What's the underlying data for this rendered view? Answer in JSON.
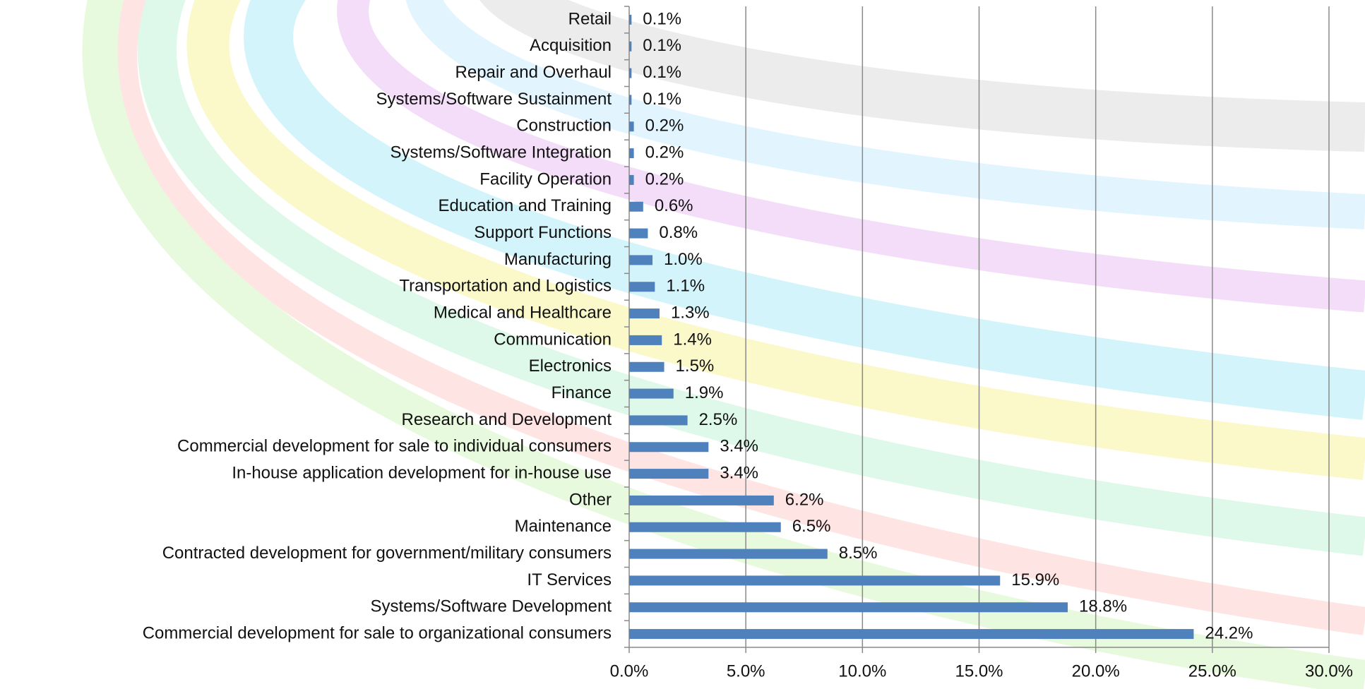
{
  "chart_data": {
    "type": "bar",
    "categories": [
      "Retail",
      "Acquisition",
      "Repair and Overhaul",
      "Systems/Software Sustainment",
      "Construction",
      "Systems/Software Integration",
      "Facility Operation",
      "Education and Training",
      "Support Functions",
      "Manufacturing",
      "Transportation and Logistics",
      "Medical and Healthcare",
      "Communication",
      "Electronics",
      "Finance",
      "Research and Development",
      "Commercial development for sale to individual consumers",
      "In-house application development for in-house use",
      "Other",
      "Maintenance",
      "Contracted development for government/military consumers",
      "IT Services",
      "Systems/Software Development",
      "Commercial development for sale to organizational consumers"
    ],
    "values": [
      0.1,
      0.1,
      0.1,
      0.1,
      0.2,
      0.2,
      0.2,
      0.6,
      0.8,
      1.0,
      1.1,
      1.3,
      1.4,
      1.5,
      1.9,
      2.5,
      3.4,
      3.4,
      6.2,
      6.5,
      8.5,
      15.9,
      18.8,
      24.2
    ],
    "value_labels": [
      "0.1%",
      "0.1%",
      "0.1%",
      "0.1%",
      "0.2%",
      "0.2%",
      "0.2%",
      "0.6%",
      "0.8%",
      "1.0%",
      "1.1%",
      "1.3%",
      "1.4%",
      "1.5%",
      "1.9%",
      "2.5%",
      "3.4%",
      "3.4%",
      "6.2%",
      "6.5%",
      "8.5%",
      "15.9%",
      "18.8%",
      "24.2%"
    ],
    "color": "#4f81bd",
    "xlim": [
      0,
      30
    ],
    "xticks": [
      {
        "value": 0,
        "label": "0.0%"
      },
      {
        "value": 5,
        "label": "5.0%"
      },
      {
        "value": 10,
        "label": "10.0%"
      },
      {
        "value": 15,
        "label": "15.0%"
      },
      {
        "value": 20,
        "label": "20.0%"
      },
      {
        "value": 25,
        "label": "25.0%"
      },
      {
        "value": 30,
        "label": "30.0%"
      }
    ],
    "grid": true
  }
}
